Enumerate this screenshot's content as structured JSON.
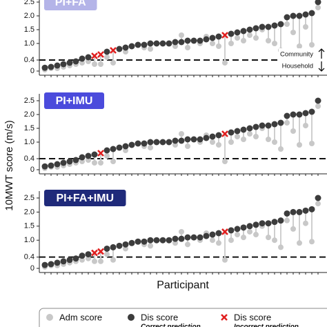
{
  "figure": {
    "ylabel": "10MWT score (m/s)",
    "xlabel": "Participant",
    "threshold_labels": [
      "Community",
      "Household"
    ],
    "legend": [
      {
        "label": "Adm score",
        "color": "#c8c8c8",
        "marker": "circle"
      },
      {
        "label": "Dis score",
        "sublabel": "Correct prediction",
        "color": "#3c3c3c",
        "marker": "circle"
      },
      {
        "label": "Dis score",
        "sublabel": "Incorrect prediction",
        "color": "#e02020",
        "marker": "x"
      }
    ]
  },
  "chart_data": [
    {
      "type": "lollipop",
      "title": "PI+FA",
      "title_color": "#b4b4e8",
      "threshold": 0.4,
      "categories": [
        null,
        null,
        null,
        null,
        null,
        null,
        null,
        null,
        null,
        null,
        null,
        null,
        null,
        null,
        null,
        null,
        null,
        null,
        null,
        null,
        null,
        null,
        null,
        null,
        null,
        null,
        null,
        null,
        null,
        null,
        null,
        null,
        null,
        null,
        null,
        null,
        null,
        null,
        null,
        null,
        null,
        null,
        null,
        null,
        null
      ],
      "ylim": [
        0,
        2.5
      ],
      "yticks": [
        0,
        0.4,
        {
          "value": 1.0,
          "label": "1.0"
        },
        1.5,
        {
          "value": 2.0,
          "label": "2.0"
        },
        2.5
      ],
      "series": [
        {
          "name": "Adm score",
          "color": "#c8c8c8",
          "values": [
            0.05,
            0.1,
            0.1,
            0.15,
            0.2,
            0.25,
            0.3,
            0.35,
            0.25,
            0.25,
            0.5,
            0.3,
            0.8,
            0.7,
            0.9,
            0.95,
            0.85,
            0.8,
            1.0,
            1.0,
            1.0,
            0.9,
            1.3,
            0.85,
            1.1,
            1.0,
            1.25,
            1.0,
            0.9,
            0.3,
            1.0,
            1.2,
            1.1,
            1.3,
            1.2,
            1.5,
            1.1,
            1.0,
            0.75,
            1.7,
            1.4,
            0.9,
            1.6,
            0.95,
            2.3
          ]
        },
        {
          "name": "Dis score",
          "color": "#3c3c3c",
          "values": [
            0.12,
            0.15,
            0.2,
            0.25,
            0.3,
            0.35,
            0.45,
            0.5,
            null,
            null,
            0.7,
            null,
            0.8,
            0.85,
            0.9,
            0.95,
            0.95,
            1.0,
            1.0,
            1.0,
            1.0,
            1.05,
            1.05,
            1.1,
            1.1,
            1.1,
            1.15,
            1.2,
            1.25,
            null,
            1.35,
            1.4,
            1.45,
            1.5,
            1.55,
            1.6,
            1.6,
            1.65,
            1.7,
            1.95,
            2.0,
            2.0,
            2.05,
            2.1,
            2.5
          ]
        },
        {
          "name": "Dis score",
          "color": "#e02020",
          "values": [
            null,
            null,
            null,
            null,
            null,
            null,
            null,
            null,
            0.55,
            0.6,
            null,
            0.75,
            null,
            null,
            null,
            null,
            null,
            null,
            null,
            null,
            null,
            null,
            null,
            null,
            null,
            null,
            null,
            null,
            null,
            1.3,
            null,
            null,
            null,
            null,
            null,
            null,
            null,
            null,
            null,
            null,
            null,
            null,
            null,
            null,
            null
          ]
        }
      ]
    },
    {
      "type": "lollipop",
      "title": "PI+IMU",
      "title_color": "#4b4bdc",
      "threshold": 0.4,
      "categories": [
        null,
        null,
        null,
        null,
        null,
        null,
        null,
        null,
        null,
        null,
        null,
        null,
        null,
        null,
        null,
        null,
        null,
        null,
        null,
        null,
        null,
        null,
        null,
        null,
        null,
        null,
        null,
        null,
        null,
        null,
        null,
        null,
        null,
        null,
        null,
        null,
        null,
        null,
        null,
        null,
        null,
        null,
        null,
        null,
        null
      ],
      "ylim": [
        0,
        2.5
      ],
      "yticks": [
        0,
        0.4,
        {
          "value": 1.0,
          "label": "1.0"
        },
        1.5,
        {
          "value": 2.0,
          "label": "2.0"
        },
        2.5
      ],
      "series": [
        {
          "name": "Adm score",
          "color": "#c8c8c8",
          "values": [
            0.05,
            0.1,
            0.1,
            0.15,
            0.2,
            0.25,
            0.3,
            0.35,
            0.25,
            0.25,
            0.5,
            0.3,
            0.8,
            0.7,
            0.9,
            0.95,
            0.85,
            0.8,
            1.0,
            1.0,
            1.0,
            0.9,
            1.3,
            0.85,
            1.1,
            1.0,
            1.25,
            1.0,
            0.9,
            0.3,
            1.0,
            1.2,
            1.1,
            1.3,
            1.2,
            1.5,
            1.1,
            1.0,
            0.75,
            1.7,
            1.4,
            0.9,
            1.6,
            0.95,
            2.3
          ]
        },
        {
          "name": "Dis score",
          "color": "#3c3c3c",
          "values": [
            0.12,
            0.15,
            0.2,
            0.25,
            0.3,
            0.35,
            0.45,
            0.5,
            0.55,
            null,
            0.7,
            0.75,
            0.8,
            0.85,
            0.9,
            0.95,
            0.95,
            1.0,
            1.0,
            1.0,
            1.0,
            1.05,
            1.05,
            1.1,
            1.1,
            1.1,
            1.15,
            1.2,
            1.25,
            null,
            1.35,
            1.4,
            1.45,
            1.5,
            1.55,
            1.6,
            1.6,
            1.65,
            1.7,
            1.95,
            2.0,
            2.0,
            2.05,
            2.1,
            2.5
          ]
        },
        {
          "name": "Dis score",
          "color": "#e02020",
          "values": [
            null,
            null,
            null,
            null,
            null,
            null,
            null,
            null,
            null,
            0.6,
            null,
            null,
            null,
            null,
            null,
            null,
            null,
            null,
            null,
            null,
            null,
            null,
            null,
            null,
            null,
            null,
            null,
            null,
            null,
            1.3,
            null,
            null,
            null,
            null,
            null,
            null,
            null,
            null,
            null,
            null,
            null,
            null,
            null,
            null,
            null
          ]
        }
      ]
    },
    {
      "type": "lollipop",
      "title": "PI+FA+IMU",
      "title_color": "#1f2a7a",
      "threshold": 0.4,
      "categories": [
        null,
        null,
        null,
        null,
        null,
        null,
        null,
        null,
        null,
        null,
        null,
        null,
        null,
        null,
        null,
        null,
        null,
        null,
        null,
        null,
        null,
        null,
        null,
        null,
        null,
        null,
        null,
        null,
        null,
        null,
        null,
        null,
        null,
        null,
        null,
        null,
        null,
        null,
        null,
        null,
        null,
        null,
        null,
        null,
        null
      ],
      "ylim": [
        0,
        2.5
      ],
      "yticks": [
        0,
        0.4,
        {
          "value": 1.0,
          "label": "1.0"
        },
        1.5,
        {
          "value": 2.0,
          "label": "2.0"
        },
        2.5
      ],
      "series": [
        {
          "name": "Adm score",
          "color": "#c8c8c8",
          "values": [
            0.05,
            0.1,
            0.1,
            0.15,
            0.2,
            0.25,
            0.3,
            0.35,
            0.25,
            0.25,
            0.5,
            0.3,
            0.8,
            0.7,
            0.9,
            0.95,
            0.85,
            0.8,
            1.0,
            1.0,
            1.0,
            0.9,
            1.3,
            0.85,
            1.1,
            1.0,
            1.25,
            1.0,
            0.9,
            0.3,
            1.0,
            1.2,
            1.1,
            1.3,
            1.2,
            1.5,
            1.1,
            1.0,
            0.75,
            1.7,
            1.4,
            0.9,
            1.6,
            0.95,
            2.3
          ]
        },
        {
          "name": "Dis score",
          "color": "#3c3c3c",
          "values": [
            0.12,
            0.15,
            0.2,
            0.25,
            0.3,
            0.35,
            0.45,
            0.5,
            null,
            null,
            0.7,
            0.75,
            0.8,
            0.85,
            0.9,
            0.95,
            0.95,
            1.0,
            1.0,
            1.0,
            1.0,
            1.05,
            1.05,
            1.1,
            1.1,
            1.1,
            1.15,
            1.2,
            1.25,
            null,
            1.35,
            1.4,
            1.45,
            1.5,
            1.55,
            1.6,
            1.6,
            1.65,
            1.7,
            1.95,
            2.0,
            2.0,
            2.05,
            2.1,
            2.5
          ]
        },
        {
          "name": "Dis score",
          "color": "#e02020",
          "values": [
            null,
            null,
            null,
            null,
            null,
            null,
            null,
            null,
            0.55,
            0.6,
            null,
            null,
            null,
            null,
            null,
            null,
            null,
            null,
            null,
            null,
            null,
            null,
            null,
            null,
            null,
            null,
            null,
            null,
            null,
            1.3,
            null,
            null,
            null,
            null,
            null,
            null,
            null,
            null,
            null,
            null,
            null,
            null,
            null,
            null,
            null
          ]
        }
      ]
    }
  ]
}
